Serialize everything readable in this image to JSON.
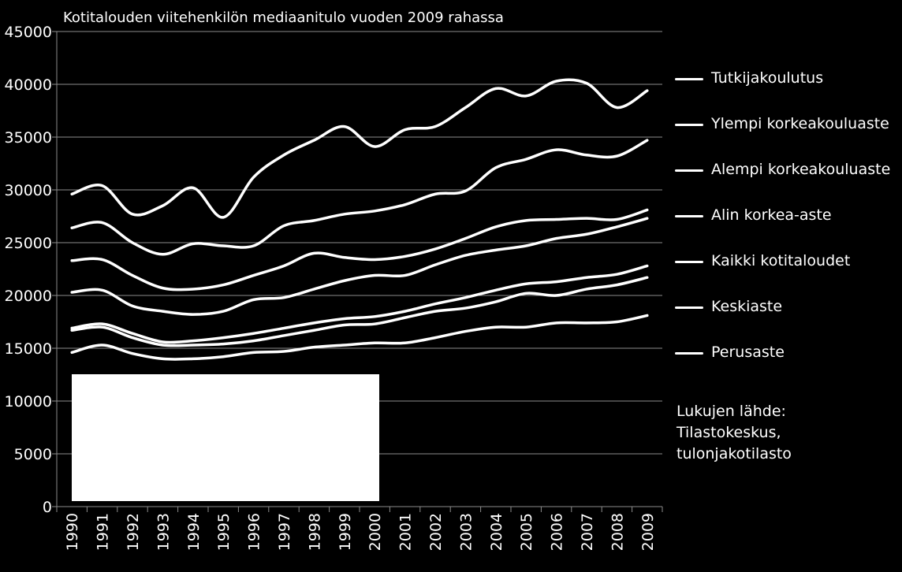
{
  "chart_data": {
    "type": "line",
    "title": "Kotitalouden viitehenkilön mediaanitulo vuoden 2009 rahassa",
    "xlabel": "",
    "ylabel": "",
    "ylim": [
      0,
      45000
    ],
    "yticks": [
      0,
      5000,
      10000,
      15000,
      20000,
      25000,
      30000,
      35000,
      40000,
      45000
    ],
    "x": [
      "1990",
      "1991",
      "1992",
      "1993",
      "1994",
      "1995",
      "1996",
      "1997",
      "1998",
      "1999",
      "2000",
      "2001",
      "2002",
      "2003",
      "2004",
      "2005",
      "2006",
      "2007",
      "2008",
      "2009"
    ],
    "grid": true,
    "legend_position": "right",
    "series": [
      {
        "name": "Tutkijakoulutus",
        "values": [
          29600,
          30400,
          27700,
          28500,
          30200,
          27400,
          31200,
          33300,
          34700,
          36000,
          34100,
          35700,
          36000,
          37800,
          39600,
          38900,
          40300,
          40100,
          37800,
          39400
        ]
      },
      {
        "name": "Ylempi korkeakouluaste",
        "values": [
          26400,
          26900,
          25000,
          23900,
          24900,
          24700,
          24700,
          26600,
          27100,
          27700,
          28000,
          28600,
          29600,
          29900,
          32100,
          32900,
          33800,
          33300,
          33200,
          34700
        ]
      },
      {
        "name": "Alempi korkeakouluaste",
        "values": [
          23300,
          23400,
          21900,
          20700,
          20600,
          21000,
          21900,
          22800,
          24000,
          23600,
          23400,
          23700,
          24400,
          25400,
          26500,
          27100,
          27200,
          27300,
          27200,
          28100
        ]
      },
      {
        "name": "Alin korkea-aste",
        "values": [
          20300,
          20500,
          19000,
          18500,
          18200,
          18500,
          19600,
          19800,
          20600,
          21400,
          21900,
          21900,
          22900,
          23800,
          24300,
          24700,
          25400,
          25800,
          26500,
          27300
        ]
      },
      {
        "name": "Kaikki kotitaloudet",
        "values": [
          16900,
          17300,
          16400,
          15600,
          15700,
          16000,
          16400,
          16900,
          17400,
          17800,
          18000,
          18500,
          19200,
          19800,
          20500,
          21100,
          21300,
          21700,
          22000,
          22800
        ]
      },
      {
        "name": "Keskiaste",
        "values": [
          16700,
          17000,
          16000,
          15300,
          15300,
          15400,
          15700,
          16200,
          16700,
          17200,
          17300,
          17900,
          18500,
          18800,
          19400,
          20200,
          20000,
          20600,
          21000,
          21700
        ]
      },
      {
        "name": "Perusaste",
        "values": [
          14600,
          15300,
          14500,
          14000,
          14000,
          14200,
          14600,
          14700,
          15100,
          15300,
          15500,
          15500,
          16000,
          16600,
          17000,
          17000,
          17400,
          17400,
          17500,
          18100
        ]
      }
    ],
    "annotation": [
      "Lukujen lähde:",
      "Tilastokeskus,",
      "tulonjakotilasto"
    ]
  }
}
